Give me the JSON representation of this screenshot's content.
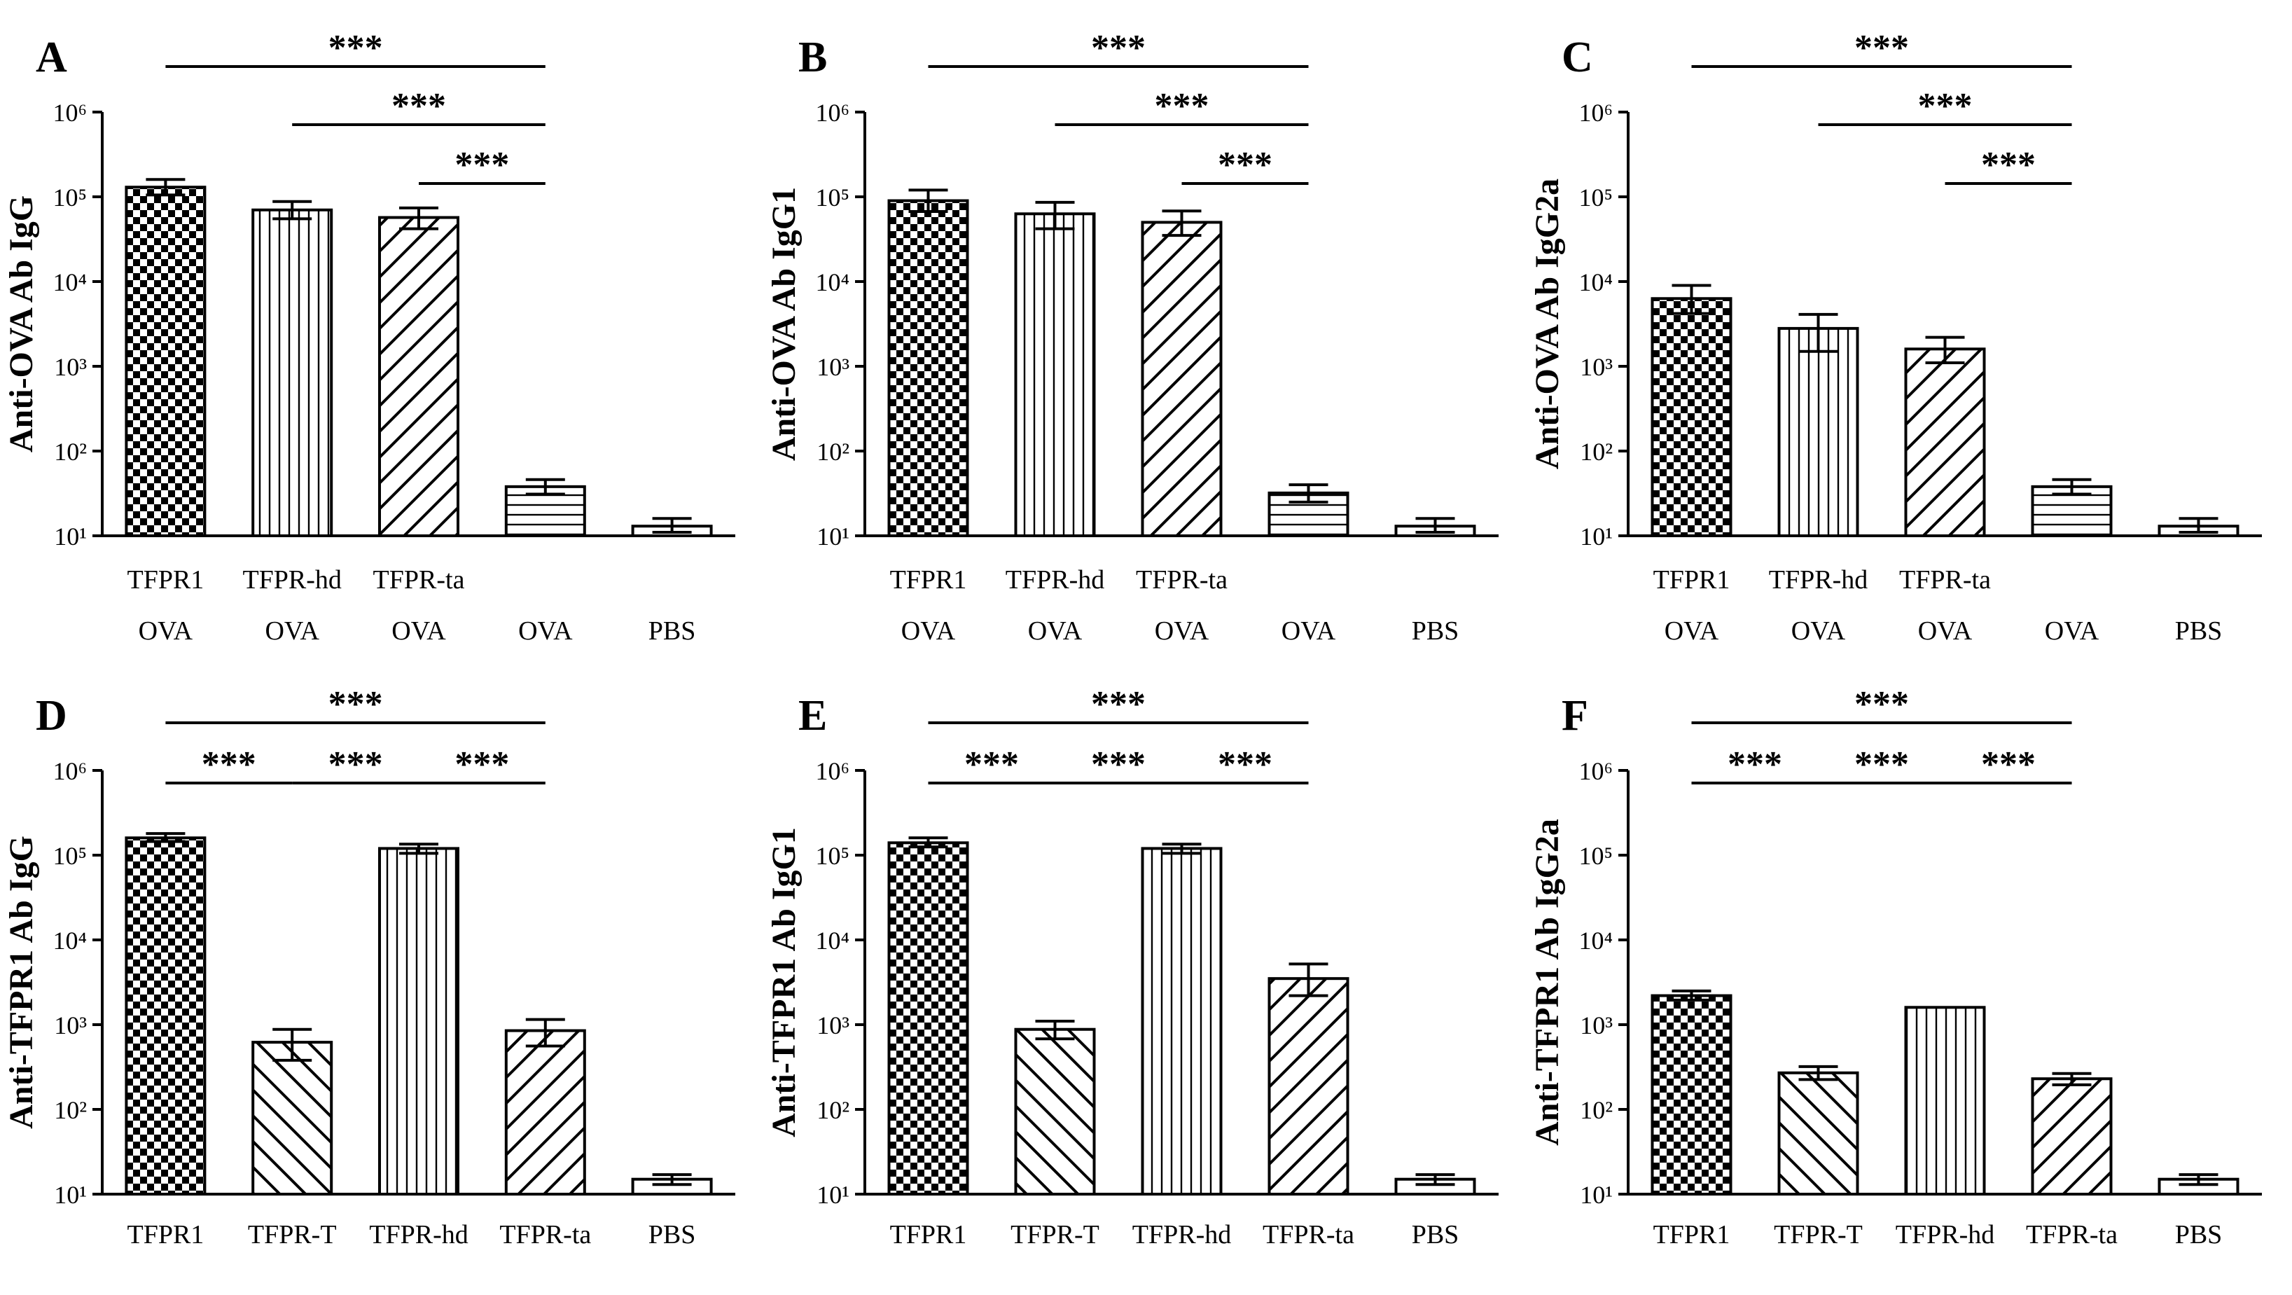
{
  "figure": {
    "ytick_labels": [
      "10¹",
      "10²",
      "10³",
      "10⁴",
      "10⁵",
      "10⁶"
    ],
    "significance_label": "***",
    "colors": {
      "ink": "#000000",
      "background": "#ffffff"
    }
  },
  "chart_data": [
    {
      "type": "bar",
      "panel": "A",
      "ylabel": "Anti-OVA Ab IgG",
      "yscale": "log",
      "ylim": [
        10,
        1000000
      ],
      "categories": [
        [
          "TFPR1",
          "OVA"
        ],
        [
          "TFPR-hd",
          "OVA"
        ],
        [
          "TFPR-ta",
          "OVA"
        ],
        [
          "",
          "OVA"
        ],
        [
          "",
          "PBS"
        ]
      ],
      "patterns": [
        "checker",
        "vertical",
        "diagonal-up",
        "horizontal",
        "plain"
      ],
      "values": [
        130000,
        70000,
        57000,
        38,
        13
      ],
      "errors": [
        [
          105000,
          160000
        ],
        [
          55000,
          88000
        ],
        [
          42000,
          74000
        ],
        [
          31,
          46
        ],
        [
          11,
          16
        ]
      ],
      "significance": [
        {
          "from": 0,
          "to": 3,
          "label": "***"
        },
        {
          "from": 1,
          "to": 3,
          "label": "***"
        },
        {
          "from": 2,
          "to": 3,
          "label": "***"
        }
      ]
    },
    {
      "type": "bar",
      "panel": "B",
      "ylabel": "Anti-OVA Ab IgG1",
      "yscale": "log",
      "ylim": [
        10,
        1000000
      ],
      "categories": [
        [
          "TFPR1",
          "OVA"
        ],
        [
          "TFPR-hd",
          "OVA"
        ],
        [
          "TFPR-ta",
          "OVA"
        ],
        [
          "",
          "OVA"
        ],
        [
          "",
          "PBS"
        ]
      ],
      "patterns": [
        "checker",
        "vertical",
        "diagonal-up",
        "horizontal",
        "plain"
      ],
      "values": [
        90000,
        63000,
        50000,
        32,
        13
      ],
      "errors": [
        [
          67000,
          120000
        ],
        [
          42000,
          86000
        ],
        [
          35000,
          68000
        ],
        [
          25,
          40
        ],
        [
          11,
          16
        ]
      ],
      "significance": [
        {
          "from": 0,
          "to": 3,
          "label": "***"
        },
        {
          "from": 1,
          "to": 3,
          "label": "***"
        },
        {
          "from": 2,
          "to": 3,
          "label": "***"
        }
      ]
    },
    {
      "type": "bar",
      "panel": "C",
      "ylabel": "Anti-OVA Ab IgG2a",
      "yscale": "log",
      "ylim": [
        10,
        1000000
      ],
      "categories": [
        [
          "TFPR1",
          "OVA"
        ],
        [
          "TFPR-hd",
          "OVA"
        ],
        [
          "TFPR-ta",
          "OVA"
        ],
        [
          "",
          "OVA"
        ],
        [
          "",
          "PBS"
        ]
      ],
      "patterns": [
        "checker",
        "vertical",
        "diagonal-up",
        "horizontal",
        "plain"
      ],
      "values": [
        6300,
        2800,
        1600,
        38,
        13
      ],
      "errors": [
        [
          4200,
          9000
        ],
        [
          1500,
          4100
        ],
        [
          1100,
          2200
        ],
        [
          31,
          46
        ],
        [
          11,
          16
        ]
      ],
      "significance": [
        {
          "from": 0,
          "to": 3,
          "label": "***"
        },
        {
          "from": 1,
          "to": 3,
          "label": "***"
        },
        {
          "from": 2,
          "to": 3,
          "label": "***"
        }
      ]
    },
    {
      "type": "bar",
      "panel": "D",
      "ylabel": "Anti-TFPR1 Ab IgG",
      "yscale": "log",
      "ylim": [
        10,
        1000000
      ],
      "categories": [
        [
          "TFPR1"
        ],
        [
          "TFPR-T"
        ],
        [
          "TFPR-hd"
        ],
        [
          "TFPR-ta"
        ],
        [
          "PBS"
        ]
      ],
      "patterns": [
        "checker",
        "diagonal-down",
        "vertical",
        "diagonal-up",
        "plain"
      ],
      "values": [
        160000,
        620,
        120000,
        850,
        15
      ],
      "errors": [
        [
          145000,
          180000
        ],
        [
          380,
          880
        ],
        [
          105000,
          135000
        ],
        [
          560,
          1150
        ],
        [
          13,
          17
        ]
      ],
      "significance": [
        {
          "from": 0,
          "to": 3,
          "label": "***"
        },
        {
          "from": 0,
          "to": 1,
          "label": "***"
        },
        {
          "from": 1,
          "to": 2,
          "label": "***"
        },
        {
          "from": 2,
          "to": 3,
          "label": "***"
        }
      ]
    },
    {
      "type": "bar",
      "panel": "E",
      "ylabel": "Anti-TFPR1 Ab IgG1",
      "yscale": "log",
      "ylim": [
        10,
        1000000
      ],
      "categories": [
        [
          "TFPR1"
        ],
        [
          "TFPR-T"
        ],
        [
          "TFPR-hd"
        ],
        [
          "TFPR-ta"
        ],
        [
          "PBS"
        ]
      ],
      "patterns": [
        "checker",
        "diagonal-down",
        "vertical",
        "diagonal-up",
        "plain"
      ],
      "values": [
        140000,
        880,
        120000,
        3500,
        15
      ],
      "errors": [
        [
          125000,
          160000
        ],
        [
          680,
          1100
        ],
        [
          105000,
          135000
        ],
        [
          2200,
          5200
        ],
        [
          13,
          17
        ]
      ],
      "significance": [
        {
          "from": 0,
          "to": 3,
          "label": "***"
        },
        {
          "from": 0,
          "to": 1,
          "label": "***"
        },
        {
          "from": 1,
          "to": 2,
          "label": "***"
        },
        {
          "from": 2,
          "to": 3,
          "label": "***"
        }
      ]
    },
    {
      "type": "bar",
      "panel": "F",
      "ylabel": "Anti-TFPR1 Ab IgG2a",
      "yscale": "log",
      "ylim": [
        10,
        1000000
      ],
      "categories": [
        [
          "TFPR1"
        ],
        [
          "TFPR-T"
        ],
        [
          "TFPR-hd"
        ],
        [
          "TFPR-ta"
        ],
        [
          "PBS"
        ]
      ],
      "patterns": [
        "checker",
        "diagonal-down",
        "vertical",
        "diagonal-up",
        "plain"
      ],
      "values": [
        2200,
        270,
        1600,
        230,
        15
      ],
      "errors": [
        [
          1950,
          2500
        ],
        [
          225,
          320
        ],
        [
          1600,
          1600
        ],
        [
          195,
          265
        ],
        [
          13,
          17
        ]
      ],
      "significance": [
        {
          "from": 0,
          "to": 3,
          "label": "***"
        },
        {
          "from": 0,
          "to": 1,
          "label": "***"
        },
        {
          "from": 1,
          "to": 2,
          "label": "***"
        },
        {
          "from": 2,
          "to": 3,
          "label": "***"
        }
      ]
    }
  ]
}
